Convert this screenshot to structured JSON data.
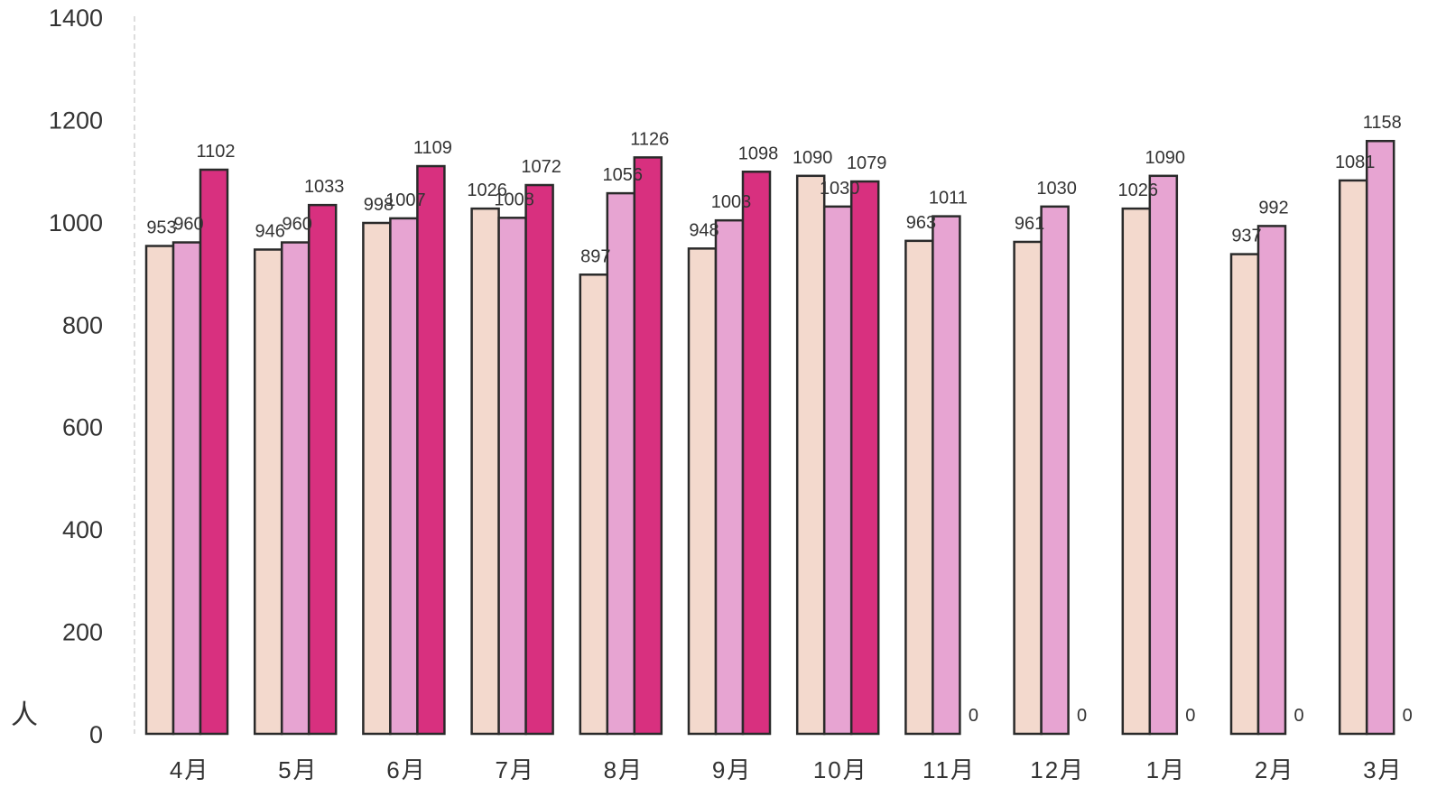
{
  "chart_data": {
    "type": "bar",
    "categories": [
      "4月",
      "5月",
      "6月",
      "7月",
      "8月",
      "9月",
      "10月",
      "11月",
      "12月",
      "1月",
      "2月",
      "3月"
    ],
    "series": [
      {
        "values": [
          953,
          946,
          998,
          1026,
          897,
          948,
          1090,
          963,
          961,
          1026,
          937,
          1081
        ],
        "color": "#f3d9cd"
      },
      {
        "values": [
          960,
          960,
          1007,
          1008,
          1056,
          1003,
          1030,
          1011,
          1030,
          1090,
          992,
          1158
        ],
        "color": "#e7a4d2"
      },
      {
        "values": [
          1102,
          1033,
          1109,
          1072,
          1126,
          1098,
          1079,
          0,
          0,
          0,
          0,
          0
        ],
        "color": "#d8307f"
      }
    ],
    "ylim": [
      0,
      1400
    ],
    "yticks": [
      0,
      200,
      400,
      600,
      800,
      1000,
      1200,
      1400
    ],
    "ylabel": "人",
    "grid": false,
    "data_labels": true
  }
}
